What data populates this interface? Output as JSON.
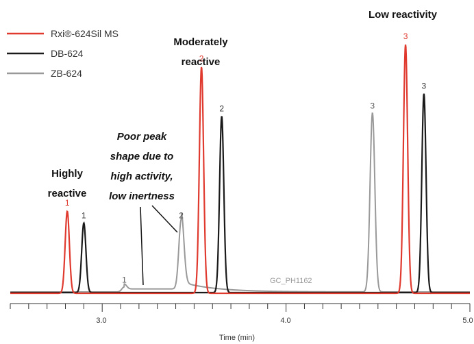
{
  "chart_data": {
    "type": "line",
    "xlabel": "Time (min)",
    "xlim": [
      2.5,
      5.0
    ],
    "x_ticks": [
      "3.0",
      "4.0",
      "5.0"
    ],
    "grid": false,
    "legend_position": "top-left",
    "series": [
      {
        "name": "Rxi®-624Sil MS",
        "color": "#e03a2f",
        "peaks": [
          {
            "label": "1",
            "time": 2.81,
            "height": 0.33
          },
          {
            "label": "2",
            "time": 3.54,
            "height": 0.91
          },
          {
            "label": "3",
            "time": 4.65,
            "height": 1.0
          }
        ]
      },
      {
        "name": "DB-624",
        "color": "#1a1a1a",
        "peaks": [
          {
            "label": "1",
            "time": 2.9,
            "height": 0.28
          },
          {
            "label": "2",
            "time": 3.65,
            "height": 0.71
          },
          {
            "label": "3",
            "time": 4.75,
            "height": 0.8
          }
        ]
      },
      {
        "name": "ZB-624",
        "color": "#999999",
        "peaks": [
          {
            "label": "1",
            "time": 3.12,
            "height": 0.02
          },
          {
            "label": "2",
            "time": 3.43,
            "height": 0.28
          },
          {
            "label": "3",
            "time": 4.47,
            "height": 0.72
          }
        ]
      }
    ],
    "annotations": [
      {
        "text": [
          "Highly",
          "reactive"
        ]
      },
      {
        "text": [
          "Poor peak",
          "shape due to",
          "high activity,",
          "low inertness"
        ]
      },
      {
        "text": [
          "Moderately",
          "reactive"
        ]
      },
      {
        "text": [
          "Low reactivity"
        ]
      }
    ],
    "watermark": "GC_PH1162"
  }
}
